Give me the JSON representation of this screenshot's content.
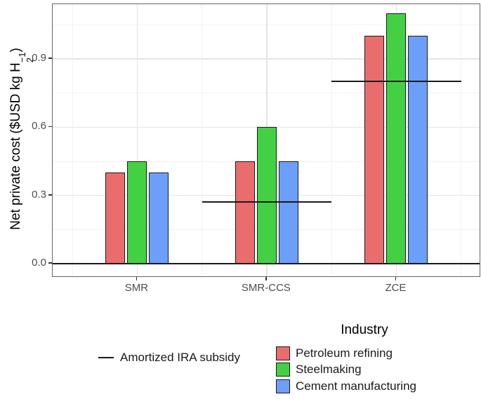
{
  "chart_data": {
    "type": "bar",
    "title": "",
    "categories": [
      "SMR",
      "SMR-CCS",
      "ZCE"
    ],
    "series": [
      {
        "name": "Petroleum refining",
        "color": "#E96D6D",
        "values": [
          0.4,
          0.45,
          1.0
        ]
      },
      {
        "name": "Steelmaking",
        "color": "#43D143",
        "values": [
          0.45,
          0.6,
          1.1
        ]
      },
      {
        "name": "Cement manufacturing",
        "color": "#6B9FF9",
        "values": [
          0.4,
          0.45,
          1.0
        ]
      }
    ],
    "bar_border_color": "#1A1A1A",
    "subsidy_lines": [
      {
        "category": "SMR-CCS",
        "value": 0.27
      },
      {
        "category": "ZCE",
        "value": 0.8
      }
    ],
    "zero_line": 0.0,
    "ylabel": {
      "prefix": "Net private cost ($USD kg H",
      "sub": "2",
      "sup": "−1",
      "suffix": ")"
    },
    "xlabel": "",
    "y_ticks": [
      "0.0",
      "0.3",
      "0.6",
      "0.9"
    ],
    "y_tick_values": [
      0.0,
      0.3,
      0.6,
      0.9
    ],
    "y_minor_values": [
      0.15,
      0.45,
      0.75,
      1.05
    ],
    "ylim": [
      -0.055,
      1.14
    ],
    "grid": "on",
    "legend_position": "bottom"
  },
  "legend_line": {
    "label": "Amortized IRA subsidy"
  },
  "legend_industry": {
    "title": "Industry"
  }
}
